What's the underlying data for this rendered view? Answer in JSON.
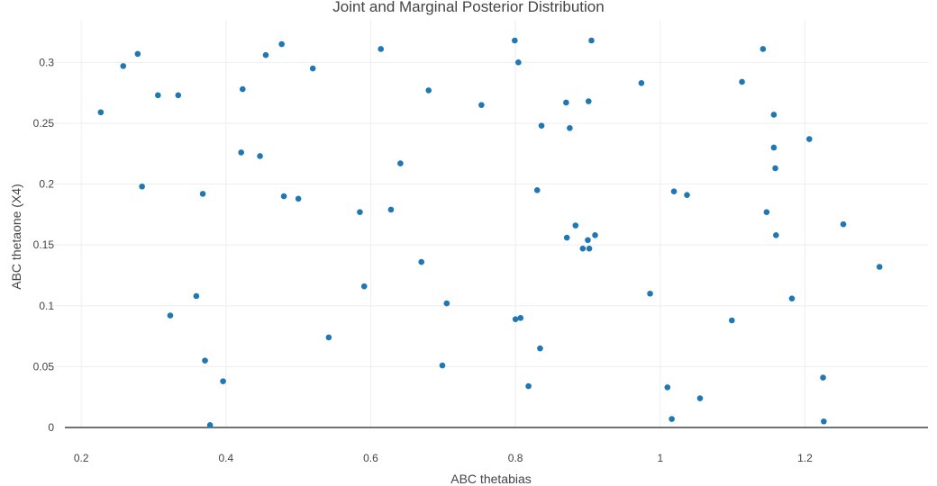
{
  "chart_data": {
    "type": "scatter",
    "title": "Joint and Marginal Posterior Distribution",
    "xlabel": "ABC thetabias",
    "ylabel": "ABC thetaone (X4)",
    "xlim": [
      0.15,
      1.37
    ],
    "ylim": [
      0,
      0.335
    ],
    "xticks": [
      0.2,
      0.4,
      0.6,
      0.8,
      1.0,
      1.2
    ],
    "xtick_labels": [
      "0.2",
      "0.4",
      "0.6",
      "0.8",
      "1",
      "1.2"
    ],
    "yticks": [
      0,
      0.05,
      0.1,
      0.15,
      0.2,
      0.25,
      0.3
    ],
    "ytick_labels": [
      "0",
      "0.05",
      "0.1",
      "0.15",
      "0.2",
      "0.25",
      "0.3"
    ],
    "grid": true,
    "marker_color": "#1f77b4",
    "points": [
      [
        0.227,
        0.259
      ],
      [
        0.258,
        0.297
      ],
      [
        0.278,
        0.307
      ],
      [
        0.284,
        0.198
      ],
      [
        0.306,
        0.273
      ],
      [
        0.334,
        0.273
      ],
      [
        0.323,
        0.092
      ],
      [
        0.359,
        0.108
      ],
      [
        0.368,
        0.192
      ],
      [
        0.371,
        0.055
      ],
      [
        0.378,
        0.002
      ],
      [
        0.396,
        0.038
      ],
      [
        0.421,
        0.226
      ],
      [
        0.423,
        0.278
      ],
      [
        0.447,
        0.223
      ],
      [
        0.455,
        0.306
      ],
      [
        0.477,
        0.315
      ],
      [
        0.48,
        0.19
      ],
      [
        0.5,
        0.188
      ],
      [
        0.52,
        0.295
      ],
      [
        0.542,
        0.074
      ],
      [
        0.585,
        0.177
      ],
      [
        0.591,
        0.116
      ],
      [
        0.614,
        0.311
      ],
      [
        0.628,
        0.179
      ],
      [
        0.641,
        0.217
      ],
      [
        0.67,
        0.136
      ],
      [
        0.68,
        0.277
      ],
      [
        0.699,
        0.051
      ],
      [
        0.705,
        0.102
      ],
      [
        0.753,
        0.265
      ],
      [
        0.799,
        0.318
      ],
      [
        0.804,
        0.3
      ],
      [
        0.8,
        0.089
      ],
      [
        0.807,
        0.09
      ],
      [
        0.818,
        0.034
      ],
      [
        0.83,
        0.195
      ],
      [
        0.834,
        0.065
      ],
      [
        0.836,
        0.248
      ],
      [
        0.87,
        0.267
      ],
      [
        0.871,
        0.156
      ],
      [
        0.875,
        0.246
      ],
      [
        0.883,
        0.166
      ],
      [
        0.893,
        0.147
      ],
      [
        0.9,
        0.154
      ],
      [
        0.901,
        0.268
      ],
      [
        0.902,
        0.147
      ],
      [
        0.905,
        0.318
      ],
      [
        0.91,
        0.158
      ],
      [
        0.974,
        0.283
      ],
      [
        0.986,
        0.11
      ],
      [
        1.01,
        0.033
      ],
      [
        1.016,
        0.007
      ],
      [
        1.019,
        0.194
      ],
      [
        1.037,
        0.191
      ],
      [
        1.055,
        0.024
      ],
      [
        1.099,
        0.088
      ],
      [
        1.113,
        0.284
      ],
      [
        1.142,
        0.311
      ],
      [
        1.147,
        0.177
      ],
      [
        1.157,
        0.257
      ],
      [
        1.157,
        0.23
      ],
      [
        1.159,
        0.213
      ],
      [
        1.16,
        0.158
      ],
      [
        1.182,
        0.106
      ],
      [
        1.206,
        0.237
      ],
      [
        1.225,
        0.041
      ],
      [
        1.226,
        0.005
      ],
      [
        1.253,
        0.167
      ],
      [
        1.303,
        0.132
      ]
    ]
  }
}
